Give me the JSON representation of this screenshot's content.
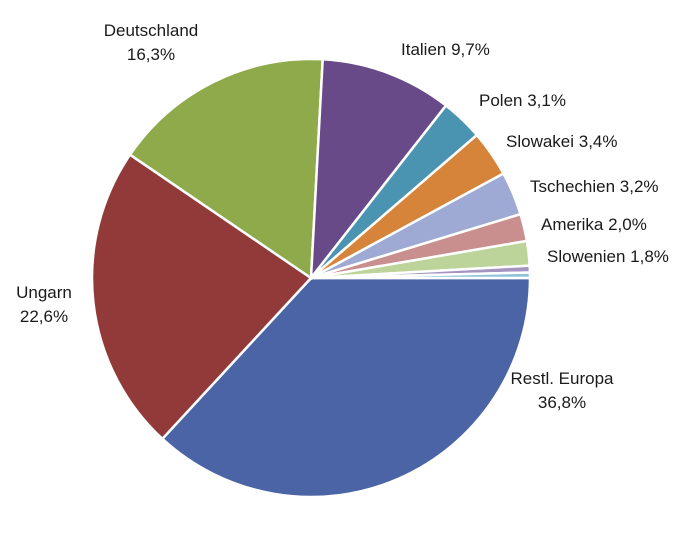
{
  "chart_data": {
    "type": "pie",
    "title": "",
    "slices": [
      {
        "name": "Restl. Europa",
        "value": 36.8,
        "label": "36,8%",
        "color": "#4B64A6",
        "label_layout": "two-line"
      },
      {
        "name": "Ungarn",
        "value": 22.6,
        "label": "22,6%",
        "color": "#923A3A",
        "label_layout": "two-line"
      },
      {
        "name": "Deutschland",
        "value": 16.3,
        "label": "16,3%",
        "color": "#8FAA4B",
        "label_layout": "two-line"
      },
      {
        "name": "Italien",
        "value": 9.7,
        "label": "9,7%",
        "color": "#684A88",
        "label_layout": "one-line"
      },
      {
        "name": "Polen",
        "value": 3.1,
        "label": "3,1%",
        "color": "#4A93B1",
        "label_layout": "one-line"
      },
      {
        "name": "Slowakei",
        "value": 3.4,
        "label": "3,4%",
        "color": "#D5843A",
        "label_layout": "one-line"
      },
      {
        "name": "Tschechien",
        "value": 3.2,
        "label": "3,2%",
        "color": "#9EAAD3",
        "label_layout": "one-line"
      },
      {
        "name": "Amerika",
        "value": 2.0,
        "label": "2,0%",
        "color": "#C98F8F",
        "label_layout": "one-line"
      },
      {
        "name": "Slowenien",
        "value": 1.8,
        "label": "1,8%",
        "color": "#BCD39A",
        "label_layout": "one-line"
      },
      {
        "name": "",
        "value": 0.5,
        "label": "",
        "color": "#A594C1",
        "label_layout": "none"
      },
      {
        "name": "",
        "value": 0.4,
        "label": "",
        "color": "#8EC3D8",
        "label_layout": "none"
      }
    ],
    "start": "3 o'clock",
    "direction": "clockwise",
    "legend": "none"
  }
}
